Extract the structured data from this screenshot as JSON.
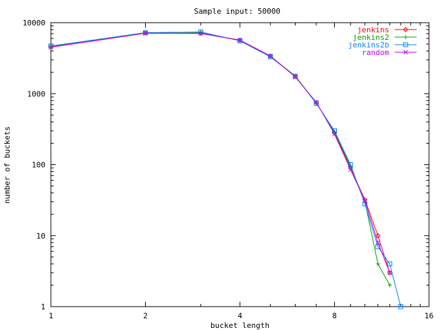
{
  "chart_data": {
    "type": "line",
    "title": "Sample input: 50000",
    "xlabel": "bucket length",
    "ylabel": "number of buckets",
    "x_scale": "log2",
    "y_scale": "log10",
    "xlim": [
      1,
      16
    ],
    "ylim": [
      1,
      10000
    ],
    "xticks": [
      1,
      2,
      4,
      8,
      16
    ],
    "yticks": [
      1,
      10,
      100,
      1000,
      10000
    ],
    "xtick_labels": [
      "1",
      "2",
      "4",
      "8",
      "16"
    ],
    "ytick_labels": [
      "1",
      "10",
      "100",
      "1000",
      "10000"
    ],
    "grid": false,
    "legend_position": "top-right",
    "series": [
      {
        "name": "jenkins",
        "color": "#ff0000",
        "marker": "diamond",
        "x": [
          1,
          2,
          3,
          4,
          5,
          6,
          7,
          8,
          9,
          10,
          11,
          12
        ],
        "y": [
          4600,
          7200,
          7100,
          5700,
          3400,
          1750,
          750,
          280,
          90,
          32,
          10,
          3
        ]
      },
      {
        "name": "jenkins2",
        "color": "#00a000",
        "marker": "plus",
        "x": [
          1,
          2,
          3,
          4,
          5,
          6,
          7,
          8,
          9,
          10,
          11,
          12
        ],
        "y": [
          4650,
          7250,
          7300,
          5600,
          3350,
          1780,
          740,
          290,
          95,
          30,
          4,
          2
        ]
      },
      {
        "name": "jenkins2b",
        "color": "#0080ff",
        "marker": "square",
        "x": [
          1,
          2,
          3,
          4,
          5,
          6,
          7,
          8,
          9,
          10,
          11,
          12,
          13
        ],
        "y": [
          4700,
          7200,
          7400,
          5550,
          3300,
          1760,
          730,
          300,
          100,
          28,
          7,
          4,
          1
        ]
      },
      {
        "name": "random",
        "color": "#c000ff",
        "marker": "x",
        "x": [
          1,
          2,
          3,
          4,
          5,
          6,
          7,
          8,
          9,
          10,
          11,
          12
        ],
        "y": [
          4500,
          7100,
          7050,
          5650,
          3380,
          1720,
          760,
          270,
          85,
          31,
          8,
          3
        ]
      }
    ]
  }
}
